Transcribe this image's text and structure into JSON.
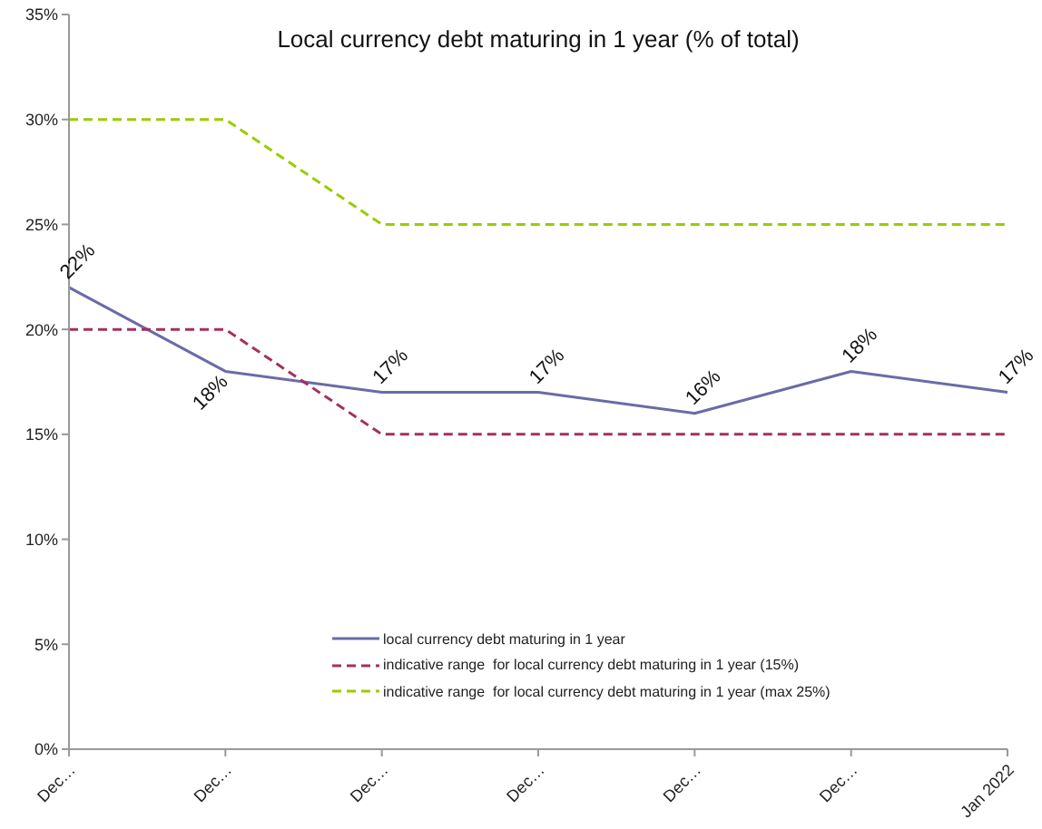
{
  "chart_data": {
    "type": "line",
    "title": "Local currency debt maturing in 1 year (% of total)",
    "categories": [
      "Dec…",
      "Dec…",
      "Dec…",
      "Dec…",
      "Dec…",
      "Dec…",
      "Jan 2022"
    ],
    "series": [
      {
        "name": "local currency debt maturing in 1 year",
        "color": "#6b6ba8",
        "values": [
          22,
          18,
          17,
          17,
          16,
          18,
          17
        ],
        "line_style": "solid",
        "value_labels": [
          "22%",
          "18%",
          "17%",
          "17%",
          "16%",
          "18%",
          "17%"
        ]
      },
      {
        "name": "indicative range  for local currency debt maturing in 1 year (15%)",
        "color": "#a3305f",
        "values": [
          20,
          20,
          15,
          15,
          15,
          15,
          15
        ],
        "line_style": "dashed"
      },
      {
        "name": "indicative range  for local currency debt maturing in 1 year (max 25%)",
        "color": "#99cc00",
        "values": [
          30,
          30,
          25,
          25,
          25,
          25,
          25
        ],
        "line_style": "dashed"
      }
    ],
    "ylim": [
      0,
      35
    ],
    "yticks": [
      {
        "value": 0,
        "label": "0%"
      },
      {
        "value": 5,
        "label": "5%"
      },
      {
        "value": 10,
        "label": "10%"
      },
      {
        "value": 15,
        "label": "15%"
      },
      {
        "value": 20,
        "label": "20%"
      },
      {
        "value": 25,
        "label": "25%"
      },
      {
        "value": 30,
        "label": "30%"
      },
      {
        "value": 35,
        "label": "35%"
      }
    ],
    "legend": "bottom",
    "marker": "none"
  }
}
